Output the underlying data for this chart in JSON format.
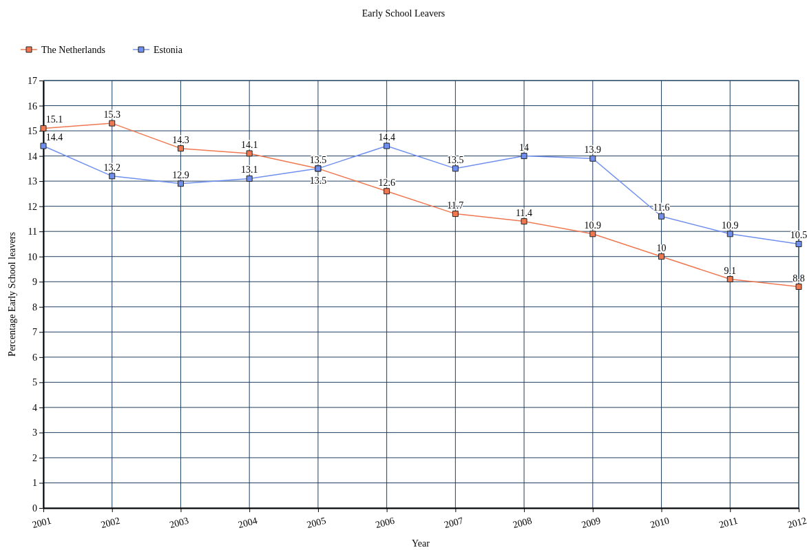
{
  "chart_data": {
    "type": "line",
    "title": "Early School Leavers",
    "xlabel": "Year",
    "ylabel": "Percentage Early School leavers",
    "x": [
      2001,
      2002,
      2003,
      2004,
      2005,
      2006,
      2007,
      2008,
      2009,
      2010,
      2011,
      2012
    ],
    "series": [
      {
        "name": "The Netherlands",
        "color": "#f07850",
        "values": [
          15.1,
          15.3,
          14.3,
          14.1,
          13.5,
          12.6,
          11.7,
          11.4,
          10.9,
          10,
          9.1,
          8.8
        ]
      },
      {
        "name": "Estonia",
        "color": "#7090f0",
        "values": [
          14.4,
          13.2,
          12.9,
          13.1,
          13.5,
          14.4,
          13.5,
          14,
          13.9,
          11.6,
          10.9,
          10.5
        ]
      }
    ],
    "xlim": [
      2001,
      2012
    ],
    "xticks": [
      2001,
      2002,
      2003,
      2004,
      2005,
      2006,
      2007,
      2008,
      2009,
      2010,
      2011,
      2012
    ],
    "ylim": [
      0,
      17
    ],
    "yticks": [
      0,
      1,
      2,
      3,
      4,
      5,
      6,
      7,
      8,
      9,
      10,
      11,
      12,
      13,
      14,
      15,
      16,
      17
    ],
    "grid": true,
    "legend": "top left",
    "marker": "square",
    "line_style": "solid",
    "data_labels": true
  }
}
